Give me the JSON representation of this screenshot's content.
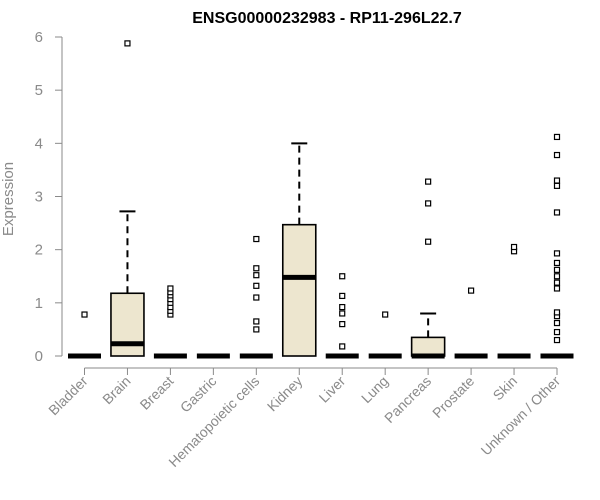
{
  "chart_data": {
    "type": "boxplot",
    "title": "ENSG00000232983 - RP11-296L22.7",
    "xlabel": "",
    "ylabel": "Expression",
    "ylim": [
      0,
      6
    ],
    "yticks": [
      0,
      1,
      2,
      3,
      4,
      5,
      6
    ],
    "categories": [
      "Bladder",
      "Brain",
      "Breast",
      "Gastric",
      "Hematopoietic cells",
      "Kidney",
      "Liver",
      "Lung",
      "Pancreas",
      "Prostate",
      "Skin",
      "Unknown / Other"
    ],
    "box_fill": "#ede6cf",
    "series": [
      {
        "q1": 0,
        "median": 0,
        "q3": 0,
        "whisker_low": 0,
        "whisker_high": 0,
        "outliers": [
          0.78
        ]
      },
      {
        "q1": 0,
        "median": 0.23,
        "q3": 1.18,
        "whisker_low": 0,
        "whisker_high": 2.72,
        "outliers": [
          5.88
        ]
      },
      {
        "q1": 0,
        "median": 0,
        "q3": 0,
        "whisker_low": 0,
        "whisker_high": 0,
        "outliers": [
          0.78,
          0.85,
          0.92,
          1.0,
          1.07,
          1.14,
          1.2,
          1.27
        ]
      },
      {
        "q1": 0,
        "median": 0,
        "q3": 0,
        "whisker_low": 0,
        "whisker_high": 0,
        "outliers": []
      },
      {
        "q1": 0,
        "median": 0,
        "q3": 0,
        "whisker_low": 0,
        "whisker_high": 0,
        "outliers": [
          0.5,
          0.65,
          1.1,
          1.32,
          1.52,
          1.65,
          2.2
        ]
      },
      {
        "q1": 0,
        "median": 1.48,
        "q3": 2.47,
        "whisker_low": 0,
        "whisker_high": 4.0,
        "outliers": []
      },
      {
        "q1": 0,
        "median": 0,
        "q3": 0,
        "whisker_low": 0,
        "whisker_high": 0,
        "outliers": [
          0.18,
          0.6,
          0.8,
          0.92,
          1.13,
          1.5
        ]
      },
      {
        "q1": 0,
        "median": 0,
        "q3": 0,
        "whisker_low": 0,
        "whisker_high": 0,
        "outliers": [
          0.78
        ]
      },
      {
        "q1": 0,
        "median": 0,
        "q3": 0.35,
        "whisker_low": 0,
        "whisker_high": 0.8,
        "outliers": [
          2.15,
          2.87,
          3.28
        ]
      },
      {
        "q1": 0,
        "median": 0,
        "q3": 0,
        "whisker_low": 0,
        "whisker_high": 0,
        "outliers": [
          1.23
        ]
      },
      {
        "q1": 0,
        "median": 0,
        "q3": 0,
        "whisker_low": 0,
        "whisker_high": 0,
        "outliers": [
          1.97,
          2.05
        ]
      },
      {
        "q1": 0,
        "median": 0,
        "q3": 0,
        "whisker_low": 0,
        "whisker_high": 0,
        "outliers": [
          0.3,
          0.45,
          0.62,
          0.75,
          0.82,
          1.27,
          1.38,
          1.5,
          1.62,
          1.75,
          1.93,
          2.7,
          3.2,
          3.3,
          3.78,
          4.12
        ]
      }
    ]
  }
}
